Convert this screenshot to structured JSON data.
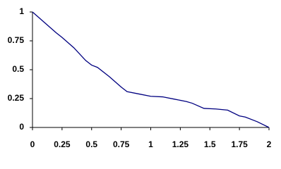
{
  "chart_data": {
    "type": "line",
    "x": [
      0,
      0.1,
      0.2,
      0.25,
      0.35,
      0.45,
      0.5,
      0.55,
      0.65,
      0.75,
      0.8,
      0.9,
      1,
      1.1,
      1.2,
      1.3,
      1.35,
      1.45,
      1.55,
      1.65,
      1.75,
      1.8,
      1.9,
      2
    ],
    "series": [
      {
        "color": "#000080",
        "values": [
          1,
          0.91,
          0.82,
          0.78,
          0.69,
          0.58,
          0.54,
          0.52,
          0.44,
          0.35,
          0.31,
          0.29,
          0.27,
          0.265,
          0.245,
          0.225,
          0.21,
          0.165,
          0.16,
          0.15,
          0.1,
          0.09,
          0.05,
          0
        ]
      }
    ],
    "xlim": [
      0,
      2
    ],
    "xticks": [
      0,
      0.25,
      0.5,
      0.75,
      1,
      1.25,
      1.5,
      1.75,
      2
    ],
    "ylim": [
      0,
      1
    ],
    "yticks": [
      0,
      0.25,
      0.5,
      0.75,
      1
    ]
  }
}
